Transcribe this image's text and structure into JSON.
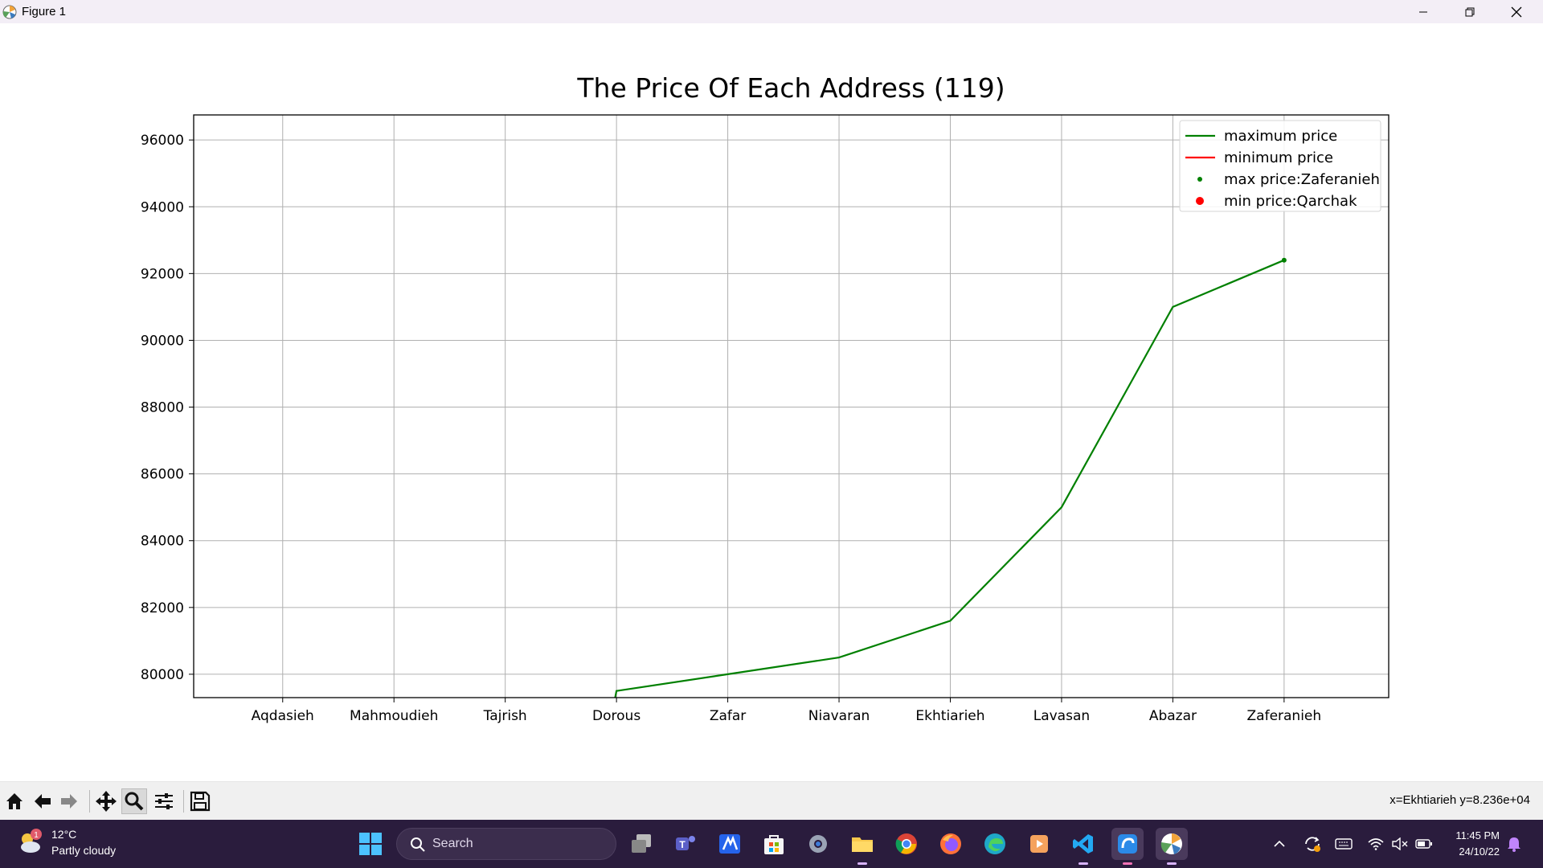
{
  "window": {
    "title": "Figure 1"
  },
  "chart_data": {
    "type": "line",
    "title": "The Price Of Each Address (119)",
    "xlabel": "",
    "ylabel": "",
    "categories": [
      "Aqdasieh",
      "Mahmoudieh",
      "Tajrish",
      "Dorous",
      "Zafar",
      "Niavaran",
      "Ekhtiarieh",
      "Lavasan",
      "Abazar",
      "Zaferanieh"
    ],
    "yticks": [
      80000,
      82000,
      84000,
      86000,
      88000,
      90000,
      92000,
      94000,
      96000
    ],
    "ylim": [
      79300,
      96750
    ],
    "grid": true,
    "legend_position": "top-right",
    "series": [
      {
        "name": "maximum price",
        "kind": "line",
        "color": "#008000",
        "points": [
          [
            2.97,
            79000
          ],
          [
            3.0,
            79500
          ],
          [
            4.0,
            80000
          ],
          [
            5.0,
            80500
          ],
          [
            6.0,
            81600
          ],
          [
            7.0,
            85000
          ],
          [
            8.0,
            91000
          ],
          [
            9.0,
            92400
          ]
        ]
      },
      {
        "name": "minimum price",
        "kind": "line",
        "color": "#ff0000",
        "points": []
      },
      {
        "name": "max price:Zaferanieh",
        "kind": "point",
        "color": "#008000",
        "points": [
          [
            9.0,
            92400
          ]
        ]
      },
      {
        "name": "min price:Qarchak",
        "kind": "point",
        "color": "#ff0000",
        "points": []
      }
    ]
  },
  "toolbar": {
    "coords": "x=Ekhtiarieh y=8.236e+04",
    "buttons": [
      "home-icon",
      "back-icon",
      "forward-icon",
      "pan-icon",
      "zoom-icon",
      "configure-icon",
      "save-icon"
    ]
  },
  "taskbar": {
    "weather": {
      "temp": "12°C",
      "condition": "Partly cloudy",
      "badge": "1"
    },
    "search_label": "Search",
    "time": "11:45 PM",
    "date": "24/10/22"
  }
}
